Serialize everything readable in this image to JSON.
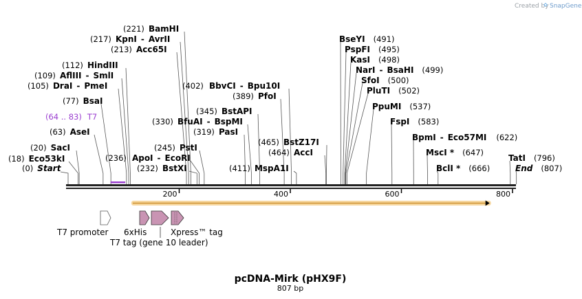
{
  "credit": {
    "prefix": "Created by",
    "brand": "SnapGene"
  },
  "map": {
    "name": "pcDNA-Mirk (pHX9F)",
    "length_label": "807 bp",
    "length": 807,
    "ticks": [
      {
        "value": 200,
        "label": "200"
      },
      {
        "value": 400,
        "label": "400"
      },
      {
        "value": 600,
        "label": "600"
      },
      {
        "value": 800,
        "label": "800"
      }
    ],
    "orf": {
      "start": 120,
      "end": 760,
      "color": "#e8a13a"
    },
    "primer": {
      "range_label": "(64 .. 83)",
      "name": "T7",
      "start": 64,
      "end": 83,
      "color": "#9b3fd0"
    },
    "sites": [
      {
        "id": "start",
        "names": [
          "Start"
        ],
        "pos_label": "(0)",
        "pos": 0,
        "italic": true
      },
      {
        "id": "eco53ki",
        "names": [
          "Eco53kI"
        ],
        "pos_label": "(18)",
        "pos": 18
      },
      {
        "id": "saci",
        "names": [
          "SacI"
        ],
        "pos_label": "(20)",
        "pos": 20
      },
      {
        "id": "asei",
        "names": [
          "AseI"
        ],
        "pos_label": "(63)",
        "pos": 63
      },
      {
        "id": "bsai",
        "names": [
          "BsaI"
        ],
        "pos_label": "(77)",
        "pos": 77
      },
      {
        "id": "drai",
        "names": [
          "DraI",
          "PmeI"
        ],
        "pos_label": "(105)",
        "pos": 105
      },
      {
        "id": "afliii",
        "names": [
          "AflIII",
          "SmlI"
        ],
        "pos_label": "(109)",
        "pos": 109
      },
      {
        "id": "hindiii",
        "names": [
          "HindIII"
        ],
        "pos_label": "(112)",
        "pos": 112
      },
      {
        "id": "acc65i",
        "names": [
          "Acc65I"
        ],
        "pos_label": "(213)",
        "pos": 213
      },
      {
        "id": "kpni",
        "names": [
          "KpnI",
          "AvrII"
        ],
        "pos_label": "(217)",
        "pos": 217
      },
      {
        "id": "bamhi",
        "names": [
          "BamHI"
        ],
        "pos_label": "(221)",
        "pos": 221
      },
      {
        "id": "bstxi",
        "names": [
          "BstXI"
        ],
        "pos_label": "(232)",
        "pos": 232
      },
      {
        "id": "apoi",
        "names": [
          "ApoI",
          "EcoRI"
        ],
        "pos_label": "(236)",
        "pos": 236
      },
      {
        "id": "psti",
        "names": [
          "PstI"
        ],
        "pos_label": "(245)",
        "pos": 245
      },
      {
        "id": "pasi",
        "names": [
          "PasI"
        ],
        "pos_label": "(319)",
        "pos": 319
      },
      {
        "id": "bfuai",
        "names": [
          "BfuAI",
          "BspMI"
        ],
        "pos_label": "(330)",
        "pos": 330
      },
      {
        "id": "bstapi",
        "names": [
          "BstAPI"
        ],
        "pos_label": "(345)",
        "pos": 345
      },
      {
        "id": "pfoi",
        "names": [
          "PfoI"
        ],
        "pos_label": "(389)",
        "pos": 389
      },
      {
        "id": "bbvci",
        "names": [
          "BbvCI",
          "Bpu10I"
        ],
        "pos_label": "(402)",
        "pos": 402
      },
      {
        "id": "mspa1i",
        "names": [
          "MspA1I"
        ],
        "pos_label": "(411)",
        "pos": 411
      },
      {
        "id": "acci",
        "names": [
          "AccI"
        ],
        "pos_label": "(464)",
        "pos": 464
      },
      {
        "id": "bstz17i",
        "names": [
          "BstZ17I"
        ],
        "pos_label": "(465)",
        "pos": 465
      },
      {
        "id": "bseyi",
        "names": [
          "BseYI"
        ],
        "pos_label": "(491)",
        "pos": 491
      },
      {
        "id": "pspfi",
        "names": [
          "PspFI"
        ],
        "pos_label": "(495)",
        "pos": 495
      },
      {
        "id": "kasi",
        "names": [
          "KasI"
        ],
        "pos_label": "(498)",
        "pos": 498
      },
      {
        "id": "nari",
        "names": [
          "NarI",
          "BsaHI"
        ],
        "pos_label": "(499)",
        "pos": 499
      },
      {
        "id": "sfoi",
        "names": [
          "SfoI"
        ],
        "pos_label": "(500)",
        "pos": 500
      },
      {
        "id": "pluti",
        "names": [
          "PluTI"
        ],
        "pos_label": "(502)",
        "pos": 502
      },
      {
        "id": "ppumi",
        "names": [
          "PpuMI"
        ],
        "pos_label": "(537)",
        "pos": 537
      },
      {
        "id": "fspi",
        "names": [
          "FspI"
        ],
        "pos_label": "(583)",
        "pos": 583
      },
      {
        "id": "bpmi",
        "names": [
          "BpmI",
          "Eco57MI"
        ],
        "pos_label": "(622)",
        "pos": 622
      },
      {
        "id": "msci",
        "names": [
          "MscI *"
        ],
        "pos_label": "(647)",
        "pos": 647
      },
      {
        "id": "bcli",
        "names": [
          "BclI *"
        ],
        "pos_label": "(666)",
        "pos": 666
      },
      {
        "id": "tati",
        "names": [
          "TatI"
        ],
        "pos_label": "(796)",
        "pos": 796
      },
      {
        "id": "end",
        "names": [
          "End"
        ],
        "pos_label": "(807)",
        "pos": 807,
        "italic": true
      }
    ],
    "features": [
      {
        "id": "t7-promoter",
        "label": "T7 promoter",
        "color": "#ffffff"
      },
      {
        "id": "6xhis",
        "label": "6xHis",
        "color": "#c994b3"
      },
      {
        "id": "t7-tag",
        "label": "T7 tag (gene 10 leader)",
        "color": "#c994b3"
      },
      {
        "id": "xpress-tag",
        "label": "Xpress™ tag",
        "color": "#c994b3"
      }
    ]
  }
}
